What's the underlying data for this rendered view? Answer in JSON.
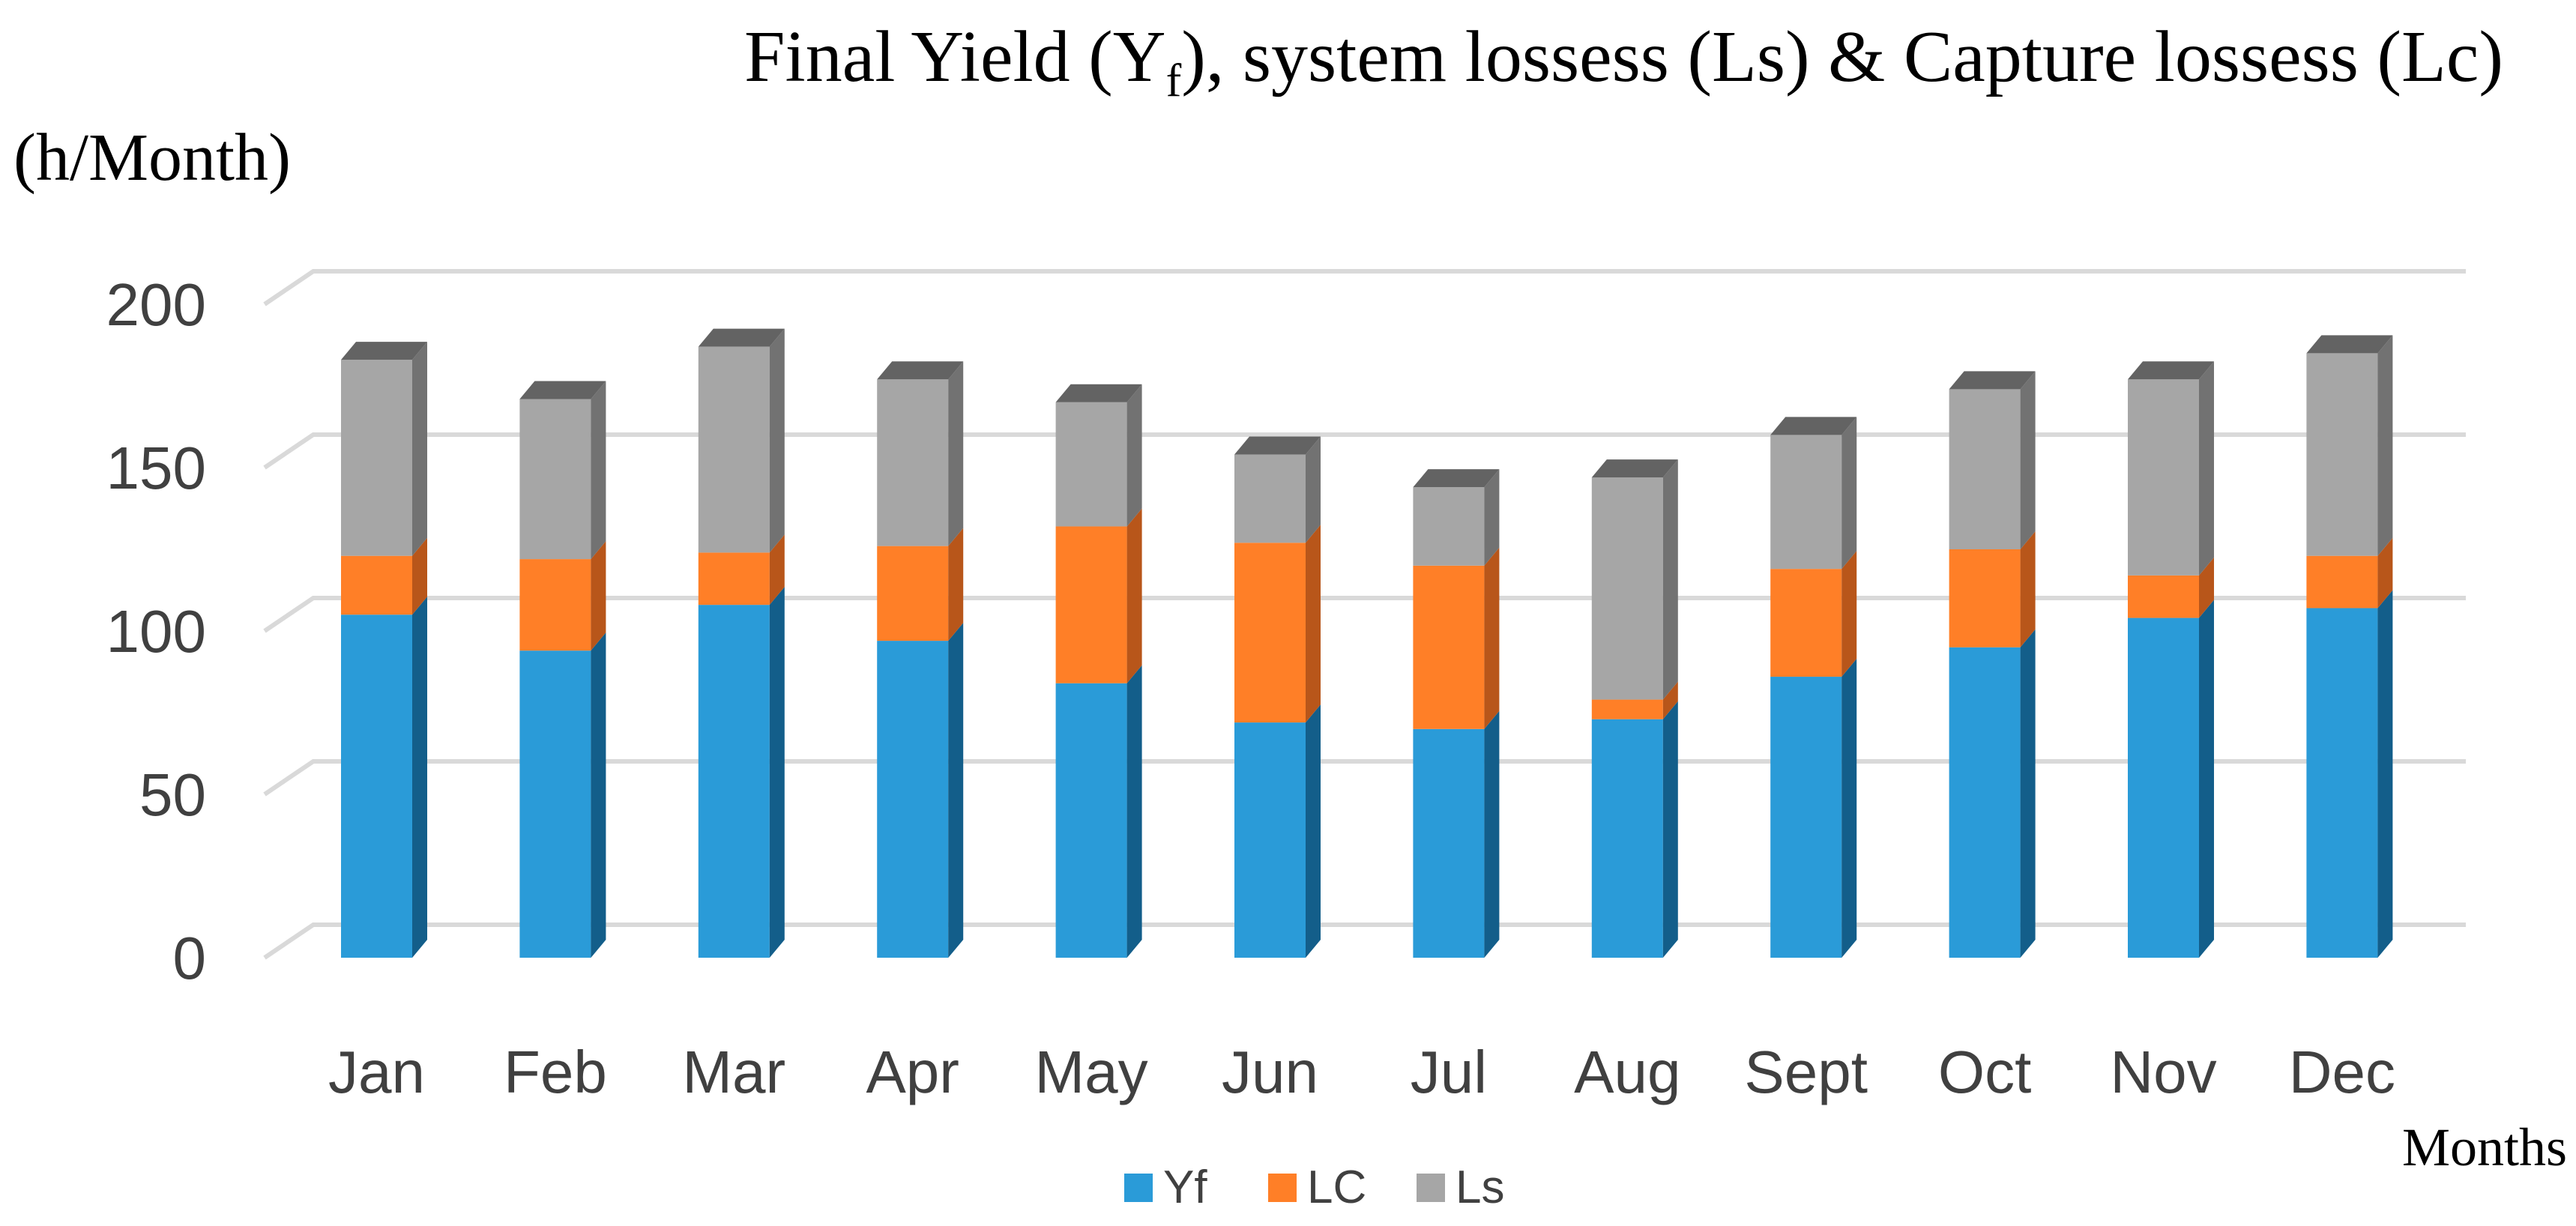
{
  "chart_data": {
    "type": "bar",
    "stacked": true,
    "three_d": true,
    "title_main": "Final Yield (Y",
    "title_sub": "f",
    "title_rest": "), system lossess (Ls) & Capture lossess (Lc)",
    "ylabel": "(h/Month)",
    "xlabel": "Months",
    "ylim": [
      0,
      200
    ],
    "yticks": [
      0,
      50,
      100,
      150,
      200
    ],
    "grid": true,
    "legend_position": "bottom",
    "categories": [
      "Jan",
      "Feb",
      "Mar",
      "Apr",
      "May",
      "Jun",
      "Jul",
      "Aug",
      "Sept",
      "Oct",
      "Nov",
      "Dec"
    ],
    "series": [
      {
        "name": "Yf",
        "color": "#2A9BD8",
        "side": "#135E8A",
        "top": "#1B7AAE",
        "values": [
          105,
          94,
          108,
          97,
          84,
          72,
          70,
          73,
          86,
          95,
          104,
          107
        ]
      },
      {
        "name": "LC",
        "color": "#FF7F27",
        "side": "#B8561A",
        "top": "#D86A20",
        "values": [
          18,
          28,
          16,
          29,
          48,
          55,
          50,
          6,
          33,
          30,
          13,
          16
        ]
      },
      {
        "name": "Ls",
        "color": "#A6A6A6",
        "side": "#727272",
        "top": "#636363",
        "values": [
          60,
          49,
          63,
          51,
          38,
          27,
          24,
          68,
          41,
          49,
          60,
          62
        ]
      }
    ]
  }
}
